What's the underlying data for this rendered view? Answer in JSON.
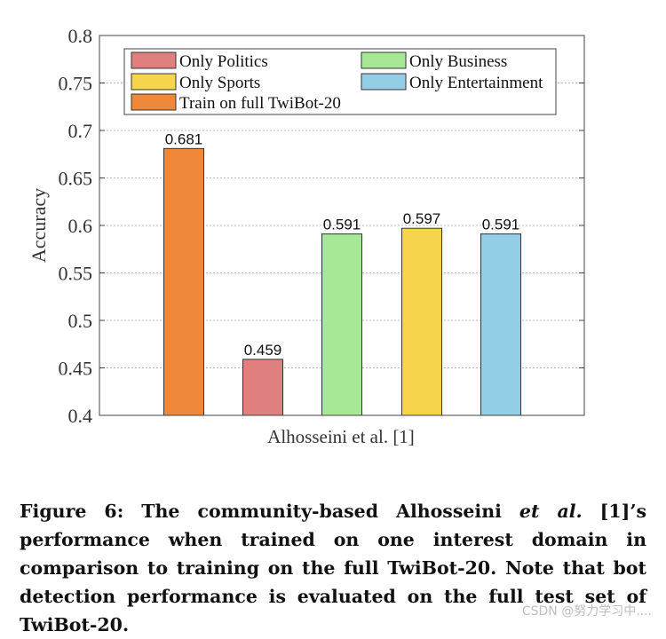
{
  "chart_data": {
    "type": "bar",
    "xlabel": "Alhosseini et al. [1]",
    "ylabel": "Accuracy",
    "ylim": [
      0.4,
      0.8
    ],
    "yticks": [
      "0.4",
      "0.45",
      "0.5",
      "0.55",
      "0.6",
      "0.65",
      "0.7",
      "0.75",
      "0.8"
    ],
    "grid": true,
    "legend_position": "top",
    "series": [
      {
        "name": "Train on full TwiBot-20",
        "value": 0.681,
        "label": "0.681",
        "color": "#ef8939"
      },
      {
        "name": "Only Politics",
        "value": 0.459,
        "label": "0.459",
        "color": "#e0807e"
      },
      {
        "name": "Only Business",
        "value": 0.591,
        "label": "0.591",
        "color": "#a6e895"
      },
      {
        "name": "Only Sports",
        "value": 0.597,
        "label": "0.597",
        "color": "#f6d44b"
      },
      {
        "name": "Only Entertainment",
        "value": 0.591,
        "label": "0.591",
        "color": "#93cde6"
      }
    ]
  },
  "caption": {
    "prefix": "Figure 6: The community-based Alhosseini ",
    "italic": "et al.",
    "suffix": " [1]’s performance when trained on one interest domain in comparison to training on the full TwiBot-20. Note that bot detection performance is evaluated on the full test set of TwiBot-20."
  },
  "watermark": "CSDN @努力学习中...."
}
